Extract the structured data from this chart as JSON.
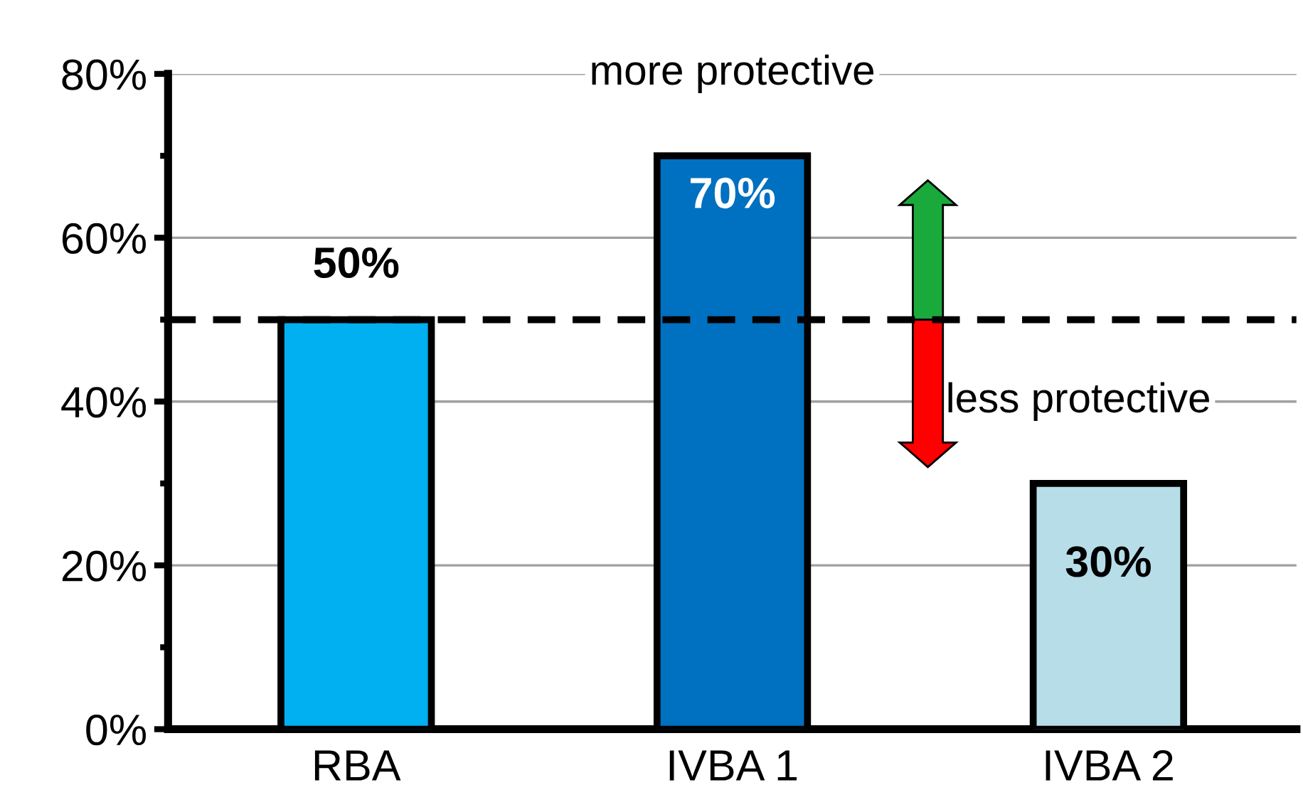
{
  "chart_data": {
    "type": "bar",
    "categories": [
      "RBA",
      "IVBA 1",
      "IVBA 2"
    ],
    "values": [
      50,
      70,
      30
    ],
    "colors": [
      "#00b0f0",
      "#0070c0",
      "#b7dee8"
    ],
    "value_labels": [
      "50%",
      "70%",
      "30%"
    ],
    "ylim": [
      0,
      80
    ],
    "yticks": [
      {
        "value": 0,
        "label": "0%"
      },
      {
        "value": 10,
        "label": null
      },
      {
        "value": 20,
        "label": "20%"
      },
      {
        "value": 30,
        "label": null
      },
      {
        "value": 40,
        "label": "40%"
      },
      {
        "value": 50,
        "label": null
      },
      {
        "value": 60,
        "label": "60%"
      },
      {
        "value": 70,
        "label": null
      },
      {
        "value": 80,
        "label": "80%"
      }
    ],
    "grid": "y",
    "ref_lines": [
      {
        "axis": "y",
        "value": 50,
        "label": null,
        "color": "#000000",
        "line_style": "dashed"
      }
    ],
    "annotations": [
      "more protective",
      "less protective"
    ]
  }
}
